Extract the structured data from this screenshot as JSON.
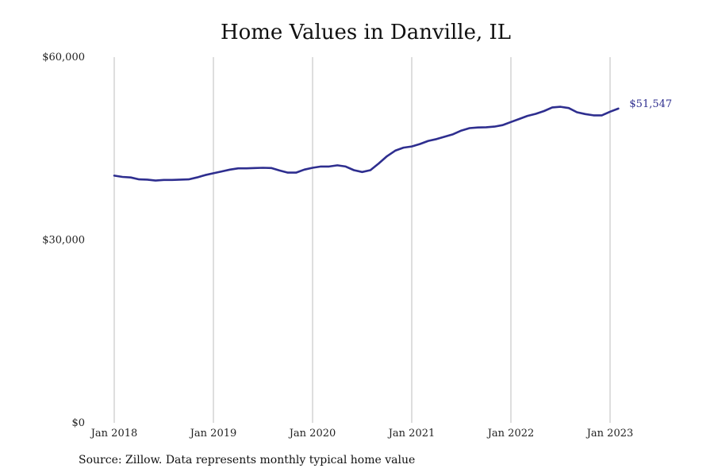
{
  "chart_data": {
    "type": "line",
    "title": "Home Values in Danville, IL",
    "xlabel": "",
    "ylabel": "",
    "ylim": [
      0,
      60000
    ],
    "yticks": [
      {
        "value": 0,
        "label": "$0"
      },
      {
        "value": 30000,
        "label": "$30,000"
      },
      {
        "value": 60000,
        "label": "$60,000"
      }
    ],
    "xticks": [
      "Jan 2018",
      "Jan 2019",
      "Jan 2020",
      "Jan 2021",
      "Jan 2022",
      "Jan 2023"
    ],
    "grid": "vertical",
    "line_color": "#2e2e8f",
    "end_label": "$51,547",
    "series": [
      {
        "x_start": "Jan 2018",
        "frequency": "monthly",
        "values": [
          40550,
          40350,
          40250,
          39950,
          39900,
          39750,
          39850,
          39850,
          39900,
          39950,
          40250,
          40650,
          40950,
          41250,
          41550,
          41750,
          41750,
          41800,
          41850,
          41800,
          41400,
          41050,
          41050,
          41550,
          41850,
          42050,
          42050,
          42250,
          42050,
          41450,
          41150,
          41450,
          42550,
          43750,
          44650,
          45150,
          45350,
          45750,
          46250,
          46550,
          46950,
          47350,
          47950,
          48350,
          48450,
          48500,
          48600,
          48850,
          49350,
          49850,
          50350,
          50700,
          51150,
          51750,
          51850,
          51650,
          50950,
          50650,
          50450,
          50450,
          51050,
          51547
        ]
      }
    ]
  },
  "source_text": "Source: Zillow. Data represents monthly typical home value"
}
